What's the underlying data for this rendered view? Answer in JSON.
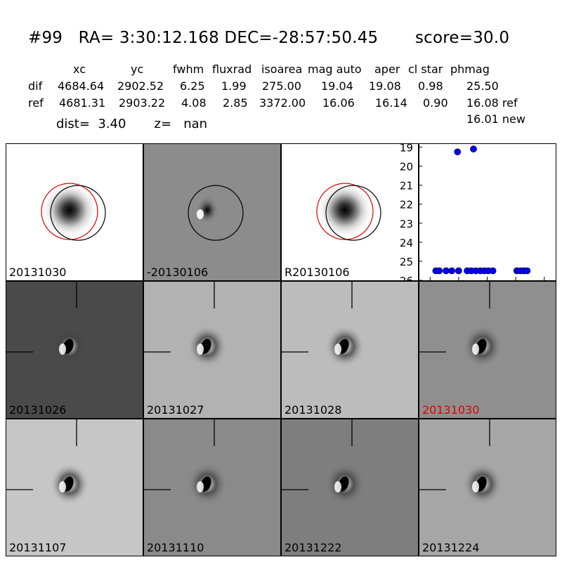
{
  "header": {
    "title": "#99   RA= 3:30:12.168 DEC=-28:57:50.45       score=30.0",
    "columns": [
      "xc",
      "yc",
      "fwhm",
      "fluxrad",
      "isoarea",
      "mag auto",
      "aper",
      "cl star",
      "phmag"
    ],
    "rows": [
      {
        "label": "dif",
        "values": [
          "4684.64",
          "2902.52",
          "6.25",
          "1.99",
          "275.00",
          "19.04",
          "19.08",
          "0.98",
          "25.50"
        ]
      },
      {
        "label": "ref",
        "values": [
          "4681.31",
          "2903.22",
          "4.08",
          "2.85",
          "3372.00",
          "16.06",
          "16.14",
          "0.90",
          "16.08 ref"
        ]
      }
    ],
    "new_mag": "16.01 new",
    "dist_text": "dist=  3.40       z=   nan"
  },
  "top_panels": [
    {
      "label": "20131030",
      "bg": "#ffffff",
      "red_circle": true
    },
    {
      "label": "-20130106",
      "bg": "#8c8c8c",
      "red_circle": false
    },
    {
      "label": "R20130106",
      "bg": "#ffffff",
      "red_circle": true
    }
  ],
  "stamps": [
    {
      "label": "20131026",
      "bg": "#4a4a4a",
      "highlight": false
    },
    {
      "label": "20131027",
      "bg": "#b2b2b2",
      "highlight": false
    },
    {
      "label": "20131028",
      "bg": "#bcbcbc",
      "highlight": false
    },
    {
      "label": "20131030",
      "bg": "#8f8f8f",
      "highlight": true
    },
    {
      "label": "20131107",
      "bg": "#c6c6c6",
      "highlight": false
    },
    {
      "label": "20131110",
      "bg": "#8a8a8a",
      "highlight": false
    },
    {
      "label": "20131222",
      "bg": "#7e7e7e",
      "highlight": false
    },
    {
      "label": "20131224",
      "bg": "#a6a6a6",
      "highlight": false
    }
  ],
  "chart_data": {
    "type": "scatter",
    "xlim": [
      -120,
      120
    ],
    "ylim": [
      26,
      18.8
    ],
    "x_ticks": [
      -100,
      -50,
      0,
      50,
      100
    ],
    "y_ticks": [
      19,
      20,
      21,
      22,
      23,
      24,
      25,
      26
    ],
    "color": "#0000ff",
    "points": [
      {
        "x": -52,
        "y": 19.25
      },
      {
        "x": -24,
        "y": 19.1
      },
      {
        "x": -90,
        "y": 25.5
      },
      {
        "x": -84,
        "y": 25.5
      },
      {
        "x": -72,
        "y": 25.5
      },
      {
        "x": -62,
        "y": 25.5
      },
      {
        "x": -50,
        "y": 25.5
      },
      {
        "x": -35,
        "y": 25.5
      },
      {
        "x": -28,
        "y": 25.5
      },
      {
        "x": -20,
        "y": 25.5
      },
      {
        "x": -12,
        "y": 25.5
      },
      {
        "x": -5,
        "y": 25.5
      },
      {
        "x": 2,
        "y": 25.5
      },
      {
        "x": 10,
        "y": 25.5
      },
      {
        "x": 52,
        "y": 25.5
      },
      {
        "x": 58,
        "y": 25.5
      },
      {
        "x": 64,
        "y": 25.5
      },
      {
        "x": 70,
        "y": 25.5
      }
    ]
  }
}
